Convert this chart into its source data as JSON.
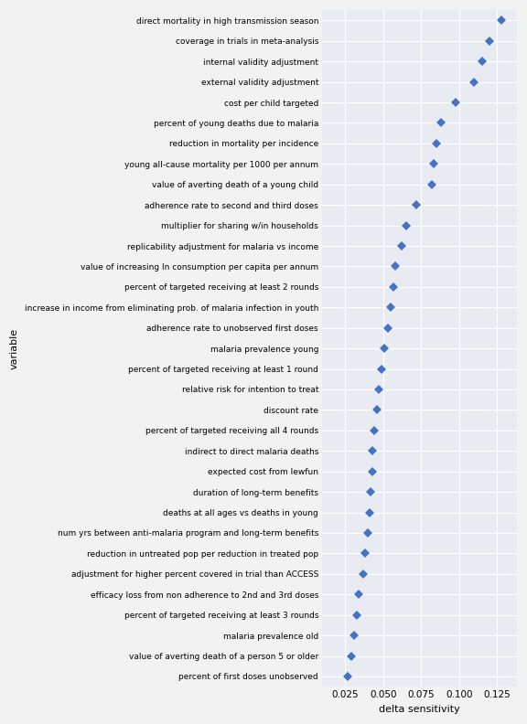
{
  "variables": [
    "direct mortality in high transmission season",
    "coverage in trials in meta-analysis",
    "internal validity adjustment",
    "external validity adjustment",
    "cost per child targeted",
    "percent of young deaths due to malaria",
    "reduction in mortality per incidence",
    "young all-cause mortality per 1000 per annum",
    "value of averting death of a young child",
    "adherence rate to second and third doses",
    "multiplier for sharing w/in households",
    "replicability adjustment for malaria vs income",
    "value of increasing ln consumption per capita per annum",
    "percent of targeted receiving at least 2 rounds",
    "increase in income from eliminating prob. of malaria infection in youth",
    "adherence rate to unobserved first doses",
    "malaria prevalence young",
    "percent of targeted receiving at least 1 round",
    "relative risk for intention to treat",
    "discount rate",
    "percent of targeted receiving all 4 rounds",
    "indirect to direct malaria deaths",
    "expected cost from lewfun",
    "duration of long-term benefits",
    "deaths at all ages vs deaths in young",
    "num yrs between anti-malaria program and long-term benefits",
    "reduction in untreated pop per reduction in treated pop",
    "adjustment for higher percent covered in trial than ACCESS",
    "efficacy loss from non adherence to 2nd and 3rd doses",
    "percent of targeted receiving at least 3 rounds",
    "malaria prevalence old",
    "value of averting death of a person 5 or older",
    "percent of first doses unobserved"
  ],
  "values": [
    0.128,
    0.12,
    0.115,
    0.11,
    0.098,
    0.088,
    0.085,
    0.083,
    0.082,
    0.072,
    0.065,
    0.062,
    0.058,
    0.057,
    0.055,
    0.053,
    0.051,
    0.049,
    0.047,
    0.046,
    0.044,
    0.043,
    0.043,
    0.042,
    0.041,
    0.04,
    0.038,
    0.037,
    0.034,
    0.033,
    0.031,
    0.029,
    0.027
  ],
  "marker_color": "#4472c4",
  "plot_bg_color": "#e8ecf2",
  "figure_bg_color": "#f2f2f2",
  "xlabel": "delta sensitivity",
  "ylabel": "variable",
  "xlim": [
    0.01,
    0.138
  ],
  "xticks": [
    0.025,
    0.05,
    0.075,
    0.1,
    0.125
  ],
  "xtick_labels": [
    "0.025",
    "0.050",
    "0.075",
    "0.100",
    "0.125"
  ],
  "marker_size": 5,
  "grid_line_color": "white",
  "grid_linewidth": 0.8,
  "label_fontsize": 6.5,
  "axis_label_fontsize": 8.0,
  "tick_fontsize": 7.5
}
